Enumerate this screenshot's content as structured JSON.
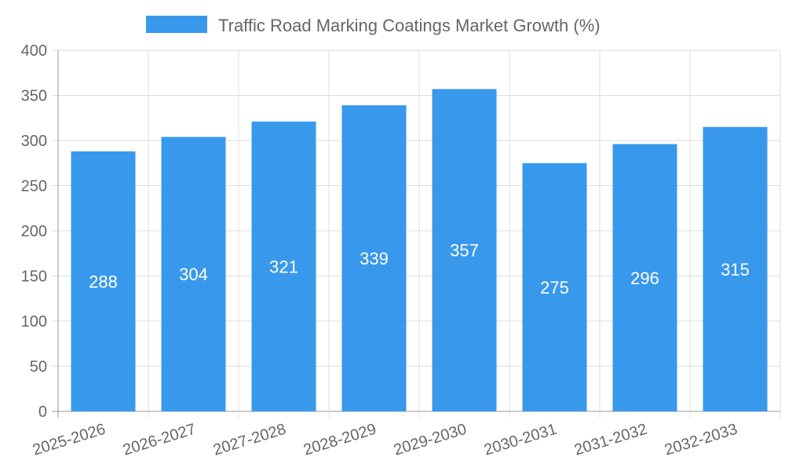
{
  "chart_data": {
    "type": "bar",
    "categories": [
      "2025-2026",
      "2026-2027",
      "2027-2028",
      "2028-2029",
      "2029-2030",
      "2030-2031",
      "2031-2032",
      "2032-2033"
    ],
    "series": [
      {
        "name": "Traffic Road Marking Coatings Market Growth (%)",
        "values": [
          288,
          304,
          321,
          339,
          357,
          275,
          296,
          315
        ]
      }
    ],
    "ylim": [
      0,
      400
    ],
    "yticks": [
      0,
      50,
      100,
      150,
      200,
      250,
      300,
      350,
      400
    ],
    "grid": true,
    "legend_position": "top",
    "bar_color": "#3899ec",
    "grid_color": "#dddddd",
    "axis_color": "#999999",
    "label_color": "#ffffff"
  }
}
